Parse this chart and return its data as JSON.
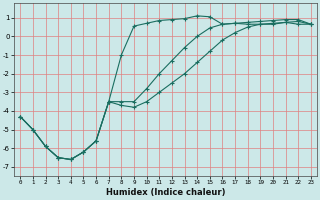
{
  "xlabel": "Humidex (Indice chaleur)",
  "background_color": "#cce8e8",
  "grid_color": "#e08080",
  "line_color": "#1a6e60",
  "xlim": [
    -0.5,
    23.5
  ],
  "ylim": [
    -7.5,
    1.8
  ],
  "yticks": [
    1,
    0,
    -1,
    -2,
    -3,
    -4,
    -5,
    -6,
    -7
  ],
  "xticks": [
    0,
    1,
    2,
    3,
    4,
    5,
    6,
    7,
    8,
    9,
    10,
    11,
    12,
    13,
    14,
    15,
    16,
    17,
    18,
    19,
    20,
    21,
    22,
    23
  ],
  "series": {
    "max": {
      "x": [
        0,
        1,
        2,
        3,
        4,
        5,
        6,
        7,
        8,
        9,
        10,
        11,
        12,
        13,
        14,
        15,
        16,
        17,
        18,
        19,
        20,
        21,
        22,
        23
      ],
      "y": [
        -4.3,
        -5.0,
        -5.9,
        -6.5,
        -6.6,
        -6.2,
        -5.6,
        -3.5,
        -1.0,
        0.55,
        0.7,
        0.85,
        0.9,
        0.95,
        1.1,
        1.05,
        0.65,
        0.7,
        0.65,
        0.65,
        0.65,
        0.75,
        0.65,
        0.65
      ]
    },
    "mean": {
      "x": [
        0,
        1,
        2,
        3,
        4,
        5,
        6,
        7,
        8,
        9,
        10,
        11,
        12,
        13,
        14,
        15,
        16,
        17,
        18,
        19,
        20,
        21,
        22,
        23
      ],
      "y": [
        -4.3,
        -5.0,
        -5.9,
        -6.5,
        -6.6,
        -6.2,
        -5.6,
        -3.5,
        -3.5,
        -3.5,
        -2.8,
        -2.0,
        -1.3,
        -0.6,
        0.0,
        0.45,
        0.65,
        0.7,
        0.75,
        0.8,
        0.85,
        0.9,
        0.9,
        0.65
      ]
    },
    "min": {
      "x": [
        0,
        1,
        2,
        3,
        4,
        5,
        6,
        7,
        8,
        9,
        10,
        11,
        12,
        13,
        14,
        15,
        16,
        17,
        18,
        19,
        20,
        21,
        22,
        23
      ],
      "y": [
        -4.3,
        -5.0,
        -5.9,
        -6.5,
        -6.6,
        -6.2,
        -5.6,
        -3.5,
        -3.7,
        -3.8,
        -3.5,
        -3.0,
        -2.5,
        -2.0,
        -1.4,
        -0.8,
        -0.2,
        0.2,
        0.5,
        0.65,
        0.7,
        0.75,
        0.8,
        0.65
      ]
    }
  }
}
